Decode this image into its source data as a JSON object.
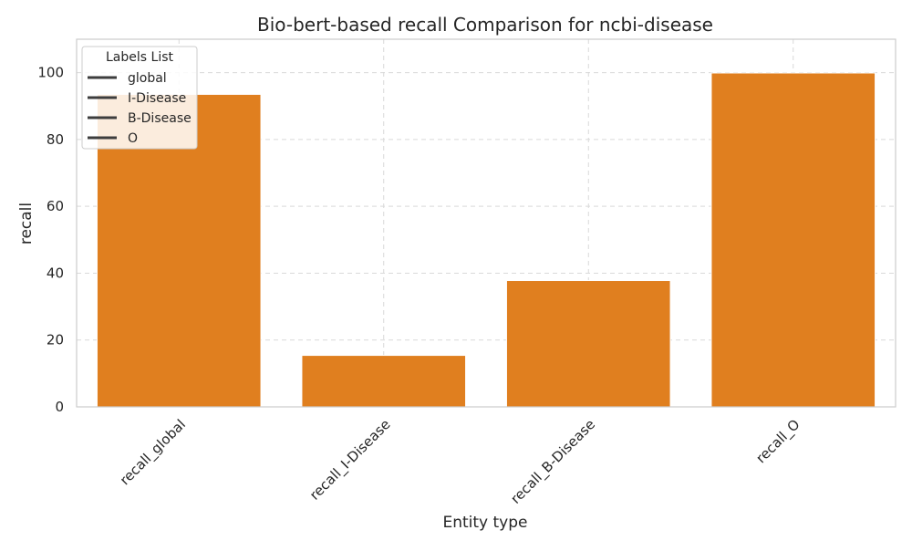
{
  "chart_data": {
    "type": "bar",
    "title": "Bio-bert-based  recall Comparison for ncbi-disease",
    "xlabel": "Entity type",
    "ylabel": "recall",
    "categories": [
      "recall_global",
      "recall_I-Disease",
      "recall_B-Disease",
      "recall_O"
    ],
    "values": [
      93.5,
      15.4,
      37.8,
      99.9
    ],
    "ylim": [
      0,
      110
    ],
    "yticks": [
      0,
      20,
      40,
      60,
      80,
      100
    ],
    "grid": true,
    "bar_color": "#e07f1f",
    "legend": {
      "title": "Labels List",
      "placement": "top-left",
      "entries": [
        "global",
        "I-Disease",
        "B-Disease",
        "O"
      ],
      "line_color": "#3d3d3d"
    }
  }
}
